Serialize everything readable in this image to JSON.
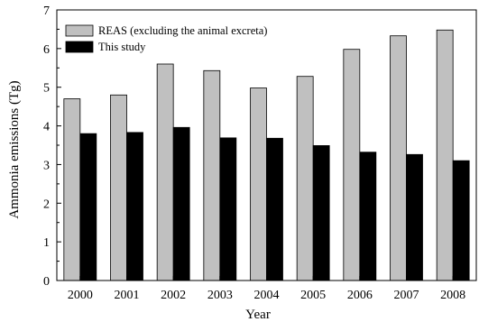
{
  "chart_data": {
    "type": "bar",
    "categories": [
      "2000",
      "2001",
      "2002",
      "2003",
      "2004",
      "2005",
      "2006",
      "2007",
      "2008"
    ],
    "series": [
      {
        "name": "REAS (excluding the animal excreta)",
        "color": "#c0c0c0",
        "values": [
          4.7,
          4.8,
          5.6,
          5.43,
          4.98,
          5.28,
          5.98,
          6.33,
          6.48
        ]
      },
      {
        "name": "This study",
        "color": "#000000",
        "values": [
          3.8,
          3.83,
          3.96,
          3.69,
          3.68,
          3.49,
          3.32,
          3.26,
          3.1
        ]
      }
    ],
    "xlabel": "Year",
    "ylabel": "Ammonia emissions (Tg)",
    "ylim": [
      0,
      7
    ],
    "yticks": [
      "0",
      "1",
      "2",
      "3",
      "4",
      "5",
      "6",
      "7"
    ],
    "grid": false,
    "legend": "top-left"
  }
}
